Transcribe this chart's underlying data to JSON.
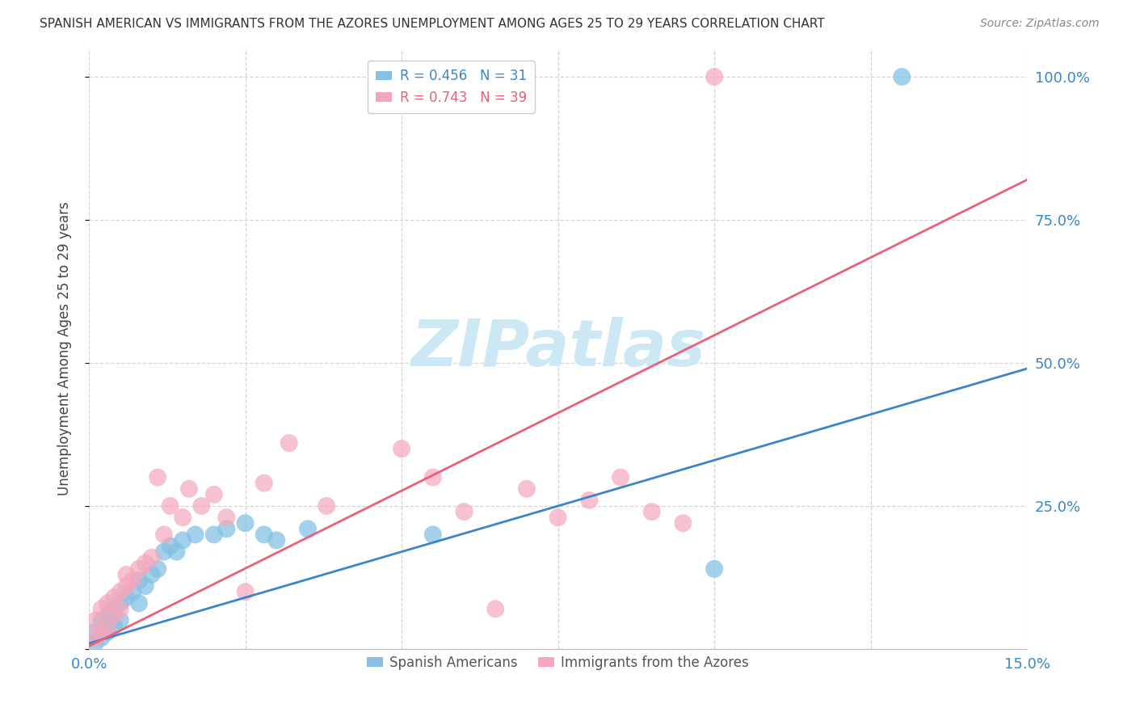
{
  "title": "SPANISH AMERICAN VS IMMIGRANTS FROM THE AZORES UNEMPLOYMENT AMONG AGES 25 TO 29 YEARS CORRELATION CHART",
  "source": "Source: ZipAtlas.com",
  "ylabel": "Unemployment Among Ages 25 to 29 years",
  "xlim": [
    0.0,
    0.15
  ],
  "ylim": [
    0.0,
    1.05
  ],
  "ytick_vals": [
    0.0,
    0.25,
    0.5,
    0.75,
    1.0
  ],
  "ytick_labels": [
    "",
    "25.0%",
    "50.0%",
    "75.0%",
    "100.0%"
  ],
  "xtick_positions": [
    0.0,
    0.025,
    0.05,
    0.075,
    0.1,
    0.125,
    0.15
  ],
  "xtick_labels": [
    "0.0%",
    "",
    "",
    "",
    "",
    "",
    "15.0%"
  ],
  "blue_R": 0.456,
  "blue_N": 31,
  "pink_R": 0.743,
  "pink_N": 39,
  "blue_color": "#85c1e3",
  "pink_color": "#f4a7bc",
  "blue_line_color": "#3a86c8",
  "pink_line_color": "#e8607a",
  "tick_label_color": "#3a86c8",
  "blue_scatter_x": [
    0.001,
    0.001,
    0.002,
    0.002,
    0.003,
    0.003,
    0.004,
    0.004,
    0.005,
    0.005,
    0.006,
    0.007,
    0.008,
    0.008,
    0.009,
    0.01,
    0.011,
    0.012,
    0.013,
    0.014,
    0.015,
    0.017,
    0.02,
    0.022,
    0.025,
    0.028,
    0.03,
    0.035,
    0.055,
    0.1,
    0.13
  ],
  "blue_scatter_y": [
    0.01,
    0.03,
    0.02,
    0.05,
    0.03,
    0.06,
    0.04,
    0.07,
    0.05,
    0.08,
    0.09,
    0.1,
    0.08,
    0.12,
    0.11,
    0.13,
    0.14,
    0.17,
    0.18,
    0.17,
    0.19,
    0.2,
    0.2,
    0.21,
    0.22,
    0.2,
    0.19,
    0.21,
    0.2,
    0.14,
    1.0
  ],
  "pink_scatter_x": [
    0.001,
    0.001,
    0.002,
    0.002,
    0.003,
    0.003,
    0.004,
    0.004,
    0.005,
    0.005,
    0.006,
    0.006,
    0.007,
    0.008,
    0.009,
    0.01,
    0.011,
    0.012,
    0.013,
    0.015,
    0.016,
    0.018,
    0.02,
    0.022,
    0.025,
    0.028,
    0.032,
    0.038,
    0.05,
    0.055,
    0.06,
    0.065,
    0.07,
    0.075,
    0.08,
    0.085,
    0.09,
    0.095,
    0.1
  ],
  "pink_scatter_y": [
    0.02,
    0.05,
    0.03,
    0.07,
    0.04,
    0.08,
    0.06,
    0.09,
    0.07,
    0.1,
    0.11,
    0.13,
    0.12,
    0.14,
    0.15,
    0.16,
    0.3,
    0.2,
    0.25,
    0.23,
    0.28,
    0.25,
    0.27,
    0.23,
    0.1,
    0.29,
    0.36,
    0.25,
    0.35,
    0.3,
    0.24,
    0.07,
    0.28,
    0.23,
    0.26,
    0.3,
    0.24,
    0.22,
    1.0
  ],
  "blue_line_x": [
    0.0,
    0.15
  ],
  "blue_line_y": [
    0.01,
    0.49
  ],
  "pink_line_x": [
    0.0,
    0.15
  ],
  "pink_line_y": [
    0.005,
    0.82
  ],
  "watermark": "ZIPatlas",
  "watermark_color": "#cde8f5",
  "background_color": "#ffffff",
  "grid_color": "#d5d5d5"
}
